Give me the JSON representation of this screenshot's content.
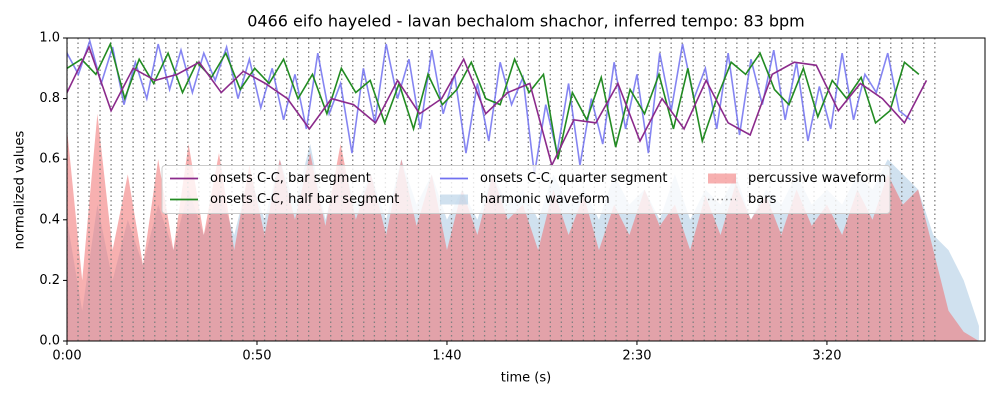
{
  "chart_data": {
    "type": "line",
    "title": "0466 eifo hayeled - lavan bechalom shachor, inferred tempo: 83 bpm",
    "x_label": "time (s)",
    "y_label": "normalized values",
    "xlim": [
      0,
      241.6
    ],
    "xticks": [
      {
        "value": 0,
        "label": "0:00"
      },
      {
        "value": 50,
        "label": "0:50"
      },
      {
        "value": 100,
        "label": "1:40"
      },
      {
        "value": 150,
        "label": "2:30"
      },
      {
        "value": 200,
        "label": "3:20"
      }
    ],
    "ylim": [
      0,
      1
    ],
    "yticks": [
      {
        "value": 0,
        "label": "0.0"
      },
      {
        "value": 0.2,
        "label": "0.2"
      },
      {
        "value": 0.4,
        "label": "0.4"
      },
      {
        "value": 0.6,
        "label": "0.6"
      },
      {
        "value": 0.8,
        "label": "0.8"
      },
      {
        "value": 1,
        "label": "1.0"
      }
    ],
    "legend_loc": "center",
    "series": [
      {
        "name": "onsets C-C, bar segment",
        "type": "line",
        "color": "#8b2a8b",
        "x": [
          0,
          5.8,
          11.6,
          17.4,
          23.2,
          29,
          34.8,
          40.6,
          46.4,
          52.2,
          58,
          63.8,
          69.6,
          75.4,
          81.2,
          87,
          92.8,
          98.6,
          104.4,
          110.2,
          116,
          121.8,
          127.6,
          133.4,
          139.2,
          145,
          150.8,
          156.6,
          162.4,
          168.2,
          174,
          179.8,
          185.6,
          191.4,
          197.2,
          203,
          208.8,
          214.6,
          220.4,
          226.2
        ],
        "values": [
          0.82,
          0.97,
          0.76,
          0.9,
          0.86,
          0.88,
          0.92,
          0.82,
          0.89,
          0.85,
          0.8,
          0.7,
          0.8,
          0.78,
          0.72,
          0.86,
          0.75,
          0.8,
          0.93,
          0.75,
          0.82,
          0.85,
          0.58,
          0.73,
          0.72,
          0.85,
          0.66,
          0.8,
          0.7,
          0.86,
          0.72,
          0.68,
          0.88,
          0.92,
          0.91,
          0.76,
          0.85,
          0.8,
          0.72,
          0.86
        ]
      },
      {
        "name": "onsets C-C, half bar segment",
        "type": "line",
        "color": "#228b22",
        "x": [
          0,
          3.8,
          7.6,
          11.4,
          15.2,
          19,
          22.8,
          26.6,
          30.4,
          34.2,
          38,
          41.8,
          45.6,
          49.4,
          53.2,
          57,
          60.8,
          64.6,
          68.4,
          72.2,
          76,
          79.8,
          83.6,
          87.4,
          91.2,
          95,
          98.8,
          102.6,
          106.4,
          110.2,
          114,
          117.8,
          121.6,
          125.4,
          129.2,
          133,
          136.8,
          140.6,
          144.4,
          148.2,
          152,
          155.8,
          159.6,
          163.4,
          167.2,
          171,
          174.8,
          178.6,
          182.4,
          186.2,
          190,
          193.8,
          197.6,
          201.4,
          205.2,
          209,
          212.8,
          216.6,
          220.4,
          224.2
        ],
        "values": [
          0.9,
          0.93,
          0.88,
          0.98,
          0.8,
          0.93,
          0.85,
          0.95,
          0.82,
          0.92,
          0.87,
          0.95,
          0.83,
          0.9,
          0.85,
          0.93,
          0.8,
          0.88,
          0.75,
          0.9,
          0.82,
          0.86,
          0.72,
          0.85,
          0.7,
          0.88,
          0.78,
          0.83,
          0.92,
          0.8,
          0.78,
          0.93,
          0.82,
          0.88,
          0.6,
          0.82,
          0.73,
          0.87,
          0.64,
          0.83,
          0.75,
          0.88,
          0.7,
          0.9,
          0.66,
          0.8,
          0.92,
          0.88,
          0.95,
          0.83,
          0.78,
          0.9,
          0.74,
          0.86,
          0.8,
          0.87,
          0.72,
          0.76,
          0.92,
          0.88
        ]
      },
      {
        "name": "onsets C-C, quarter segment",
        "type": "line",
        "color": "#7070f0",
        "x": [
          0,
          3,
          6,
          9,
          12,
          15,
          18,
          21,
          24,
          27,
          30,
          33,
          36,
          39,
          42,
          45,
          48,
          51,
          54,
          57,
          60,
          63,
          66,
          69,
          72,
          75,
          78,
          81,
          84,
          87,
          90,
          93,
          96,
          99,
          102,
          105,
          108,
          111,
          114,
          117,
          120,
          123,
          126,
          129,
          132,
          135,
          138,
          141,
          144,
          147,
          150,
          153,
          156,
          159,
          162,
          165,
          168,
          171,
          174,
          177,
          180,
          183,
          186,
          189,
          192,
          195,
          198,
          201,
          204,
          207,
          210,
          213,
          216,
          219,
          222
        ],
        "values": [
          0.95,
          0.88,
          0.99,
          0.85,
          0.97,
          0.78,
          0.92,
          0.8,
          0.98,
          0.83,
          0.96,
          0.82,
          0.95,
          0.86,
          0.97,
          0.8,
          0.93,
          0.77,
          0.9,
          0.73,
          0.88,
          0.7,
          0.95,
          0.75,
          0.85,
          0.62,
          0.9,
          0.72,
          0.98,
          0.8,
          0.93,
          0.7,
          0.96,
          0.75,
          0.88,
          0.62,
          0.85,
          0.66,
          0.92,
          0.78,
          0.87,
          0.55,
          0.78,
          0.62,
          0.85,
          0.58,
          0.8,
          0.65,
          0.92,
          0.7,
          0.88,
          0.62,
          0.95,
          0.76,
          0.98,
          0.8,
          0.9,
          0.7,
          0.95,
          0.68,
          0.93,
          0.78,
          0.96,
          0.73,
          0.92,
          0.66,
          0.84,
          0.7,
          0.95,
          0.73,
          0.88,
          0.82,
          0.95,
          0.76,
          0.73
        ]
      },
      {
        "name": "harmonic waveform",
        "type": "area",
        "color": "#a9c8e2",
        "x": [
          0,
          4,
          8,
          12,
          16,
          20,
          24,
          28,
          32,
          36,
          40,
          44,
          48,
          52,
          56,
          60,
          64,
          68,
          72,
          76,
          80,
          84,
          88,
          92,
          96,
          100,
          104,
          108,
          112,
          116,
          120,
          124,
          128,
          132,
          136,
          140,
          144,
          148,
          152,
          156,
          160,
          164,
          168,
          172,
          176,
          180,
          184,
          188,
          192,
          196,
          200,
          204,
          208,
          212,
          216,
          220,
          224,
          228,
          232,
          236,
          240
        ],
        "values": [
          0.4,
          0.1,
          0.45,
          0.2,
          0.4,
          0.25,
          0.45,
          0.3,
          0.5,
          0.35,
          0.5,
          0.35,
          0.55,
          0.4,
          0.6,
          0.45,
          0.65,
          0.4,
          0.6,
          0.45,
          0.55,
          0.4,
          0.6,
          0.45,
          0.55,
          0.4,
          0.5,
          0.4,
          0.55,
          0.45,
          0.5,
          0.4,
          0.55,
          0.45,
          0.5,
          0.4,
          0.55,
          0.45,
          0.5,
          0.4,
          0.55,
          0.4,
          0.5,
          0.45,
          0.55,
          0.4,
          0.5,
          0.45,
          0.55,
          0.45,
          0.5,
          0.45,
          0.55,
          0.5,
          0.6,
          0.55,
          0.5,
          0.35,
          0.3,
          0.2,
          0.05
        ]
      },
      {
        "name": "percussive waveform",
        "type": "area",
        "color": "#f07070",
        "x": [
          0,
          4,
          8,
          12,
          16,
          20,
          24,
          28,
          32,
          36,
          40,
          44,
          48,
          52,
          56,
          60,
          64,
          68,
          72,
          76,
          80,
          84,
          88,
          92,
          96,
          100,
          104,
          108,
          112,
          116,
          120,
          124,
          128,
          132,
          136,
          140,
          144,
          148,
          152,
          156,
          160,
          164,
          168,
          172,
          176,
          180,
          184,
          188,
          192,
          196,
          200,
          204,
          208,
          212,
          216,
          220,
          224,
          228,
          232,
          236,
          240
        ],
        "values": [
          0.7,
          0.2,
          0.75,
          0.3,
          0.55,
          0.25,
          0.6,
          0.3,
          0.65,
          0.35,
          0.62,
          0.3,
          0.58,
          0.35,
          0.6,
          0.4,
          0.62,
          0.38,
          0.65,
          0.4,
          0.55,
          0.35,
          0.6,
          0.38,
          0.55,
          0.3,
          0.5,
          0.35,
          0.55,
          0.4,
          0.45,
          0.3,
          0.5,
          0.35,
          0.48,
          0.3,
          0.45,
          0.35,
          0.5,
          0.38,
          0.45,
          0.3,
          0.48,
          0.35,
          0.52,
          0.4,
          0.48,
          0.35,
          0.5,
          0.38,
          0.45,
          0.35,
          0.5,
          0.4,
          0.55,
          0.45,
          0.5,
          0.3,
          0.1,
          0.03,
          0
        ]
      },
      {
        "name": "bars",
        "type": "vlines",
        "color": "#808080",
        "x": [
          0,
          2.9,
          5.8,
          8.7,
          11.6,
          14.5,
          17.4,
          20.2,
          23.1,
          26.0,
          28.9,
          31.8,
          34.7,
          37.6,
          40.5,
          43.4,
          46.3,
          49.2,
          52.0,
          54.9,
          57.8,
          60.7,
          63.6,
          66.5,
          69.4,
          72.3,
          75.2,
          78.1,
          80.9,
          83.8,
          86.7,
          89.6,
          92.5,
          95.4,
          98.3,
          101.2,
          104.1,
          107.0,
          109.9,
          112.7,
          115.6,
          118.5,
          121.4,
          124.3,
          127.2,
          130.1,
          133.0,
          135.9,
          138.8,
          141.7,
          144.5,
          147.4,
          150.3,
          153.2,
          156.1,
          159.0,
          161.9,
          164.8,
          167.7,
          170.6,
          173.4,
          176.3,
          179.2,
          182.1,
          185.0,
          187.9,
          190.8,
          193.7,
          196.6,
          199.5,
          202.3,
          205.2,
          208.1,
          211.0,
          213.9,
          216.8,
          219.7,
          222.6,
          225.5,
          228.4
        ]
      }
    ]
  }
}
